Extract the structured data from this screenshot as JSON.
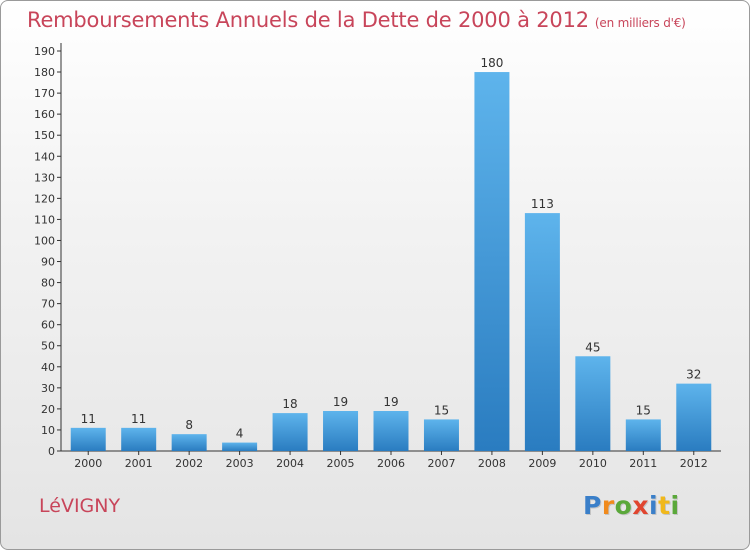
{
  "header": {
    "title": "Remboursements Annuels de la Dette de 2000 à 2012",
    "subtitle": "(en milliers d'€)"
  },
  "footer": {
    "place": "LéVIGNY",
    "logo": "Proxiti"
  },
  "colors": {
    "bar_light": "#5eb4ec",
    "bar_dark": "#2a7cc0",
    "title": "#c8455a"
  },
  "chart_data": {
    "type": "bar",
    "title": "Remboursements Annuels de la Dette de 2000 à 2012",
    "subtitle": "(en milliers d'€)",
    "categories": [
      "2000",
      "2001",
      "2002",
      "2003",
      "2004",
      "2005",
      "2006",
      "2007",
      "2008",
      "2009",
      "2010",
      "2011",
      "2012"
    ],
    "values": [
      11,
      11,
      8,
      4,
      18,
      19,
      19,
      15,
      180,
      113,
      45,
      15,
      32
    ],
    "ylim": [
      0,
      190
    ],
    "yticks": [
      0,
      10,
      20,
      30,
      40,
      50,
      60,
      70,
      80,
      90,
      100,
      110,
      120,
      130,
      140,
      150,
      160,
      170,
      180,
      190
    ],
    "grid": false,
    "data_labels": true
  }
}
